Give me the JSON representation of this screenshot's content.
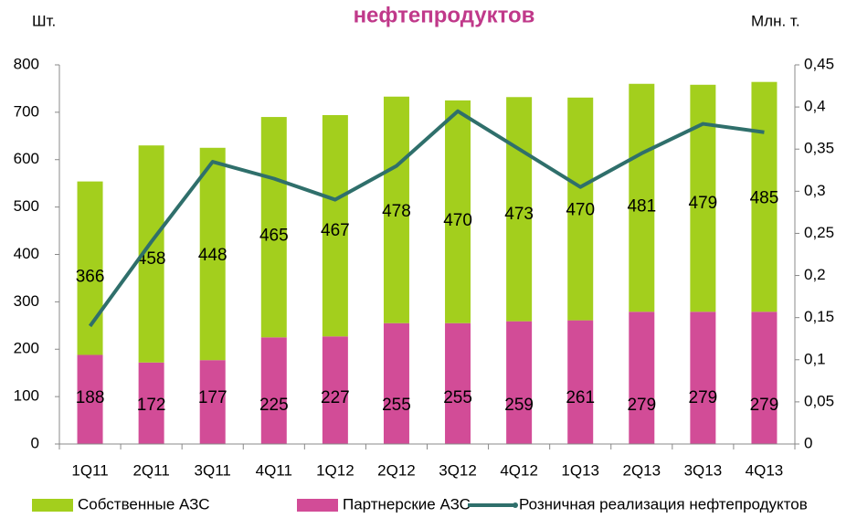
{
  "chart_data": {
    "type": "stacked-bar-line",
    "title": "нефтепродуктов",
    "y_label": "Шт.",
    "y2_label": "Млн. т.",
    "categories": [
      "1Q11",
      "2Q11",
      "3Q11",
      "4Q11",
      "1Q12",
      "2Q12",
      "3Q12",
      "4Q12",
      "1Q13",
      "2Q13",
      "3Q13",
      "4Q13"
    ],
    "series": [
      {
        "name": "Собственные АЗС",
        "color": "#a3cf1d",
        "type": "bar",
        "values": [
          366,
          458,
          448,
          465,
          467,
          478,
          470,
          473,
          470,
          481,
          479,
          485
        ]
      },
      {
        "name": "Партнерские АЗС",
        "color": "#d24c97",
        "type": "bar",
        "values": [
          188,
          172,
          177,
          225,
          227,
          255,
          255,
          259,
          261,
          279,
          279,
          279
        ]
      },
      {
        "name": "Розничная реализация нефтепродуктов",
        "color": "#2f6f6b",
        "type": "line",
        "axis": "y2",
        "values": [
          0.14,
          0.24,
          0.335,
          0.315,
          0.29,
          0.33,
          0.395,
          0.35,
          0.305,
          0.345,
          0.38,
          0.37
        ]
      }
    ],
    "ylim": [
      0,
      800
    ],
    "yticks": [
      0,
      100,
      200,
      300,
      400,
      500,
      600,
      700,
      800
    ],
    "y2lim": [
      0,
      0.45
    ],
    "y2ticks": [
      0,
      {
        "value": 0.05,
        "label": "0,05"
      },
      {
        "value": 0.1,
        "label": "0,1"
      },
      {
        "value": 0.15,
        "label": "0,15"
      },
      {
        "value": 0.2,
        "label": "0,2"
      },
      {
        "value": 0.25,
        "label": "0,25"
      },
      {
        "value": 0.3,
        "label": "0,3"
      },
      {
        "value": 0.35,
        "label": "0,35"
      },
      {
        "value": 0.4,
        "label": "0,4"
      },
      {
        "value": 0.45,
        "label": "0,45"
      }
    ]
  }
}
